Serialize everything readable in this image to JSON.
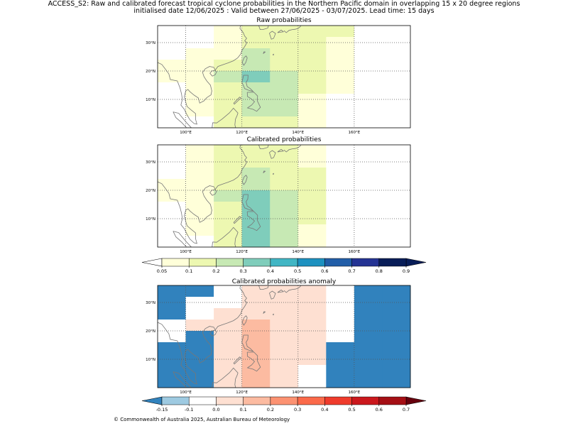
{
  "header": {
    "title_line1": "ACCESS_S2: Raw and calibrated forecast tropical cyclone probabilities in the Northern Pacific domain in overlapping 15 x 20 degree regions",
    "title_line2": "initialised date 12/06/2025 :  Valid between 27/06/2025 - 03/07/2025. Lead time: 15 days"
  },
  "map": {
    "lon_range": [
      90,
      180
    ],
    "lat_range": [
      0,
      36
    ],
    "x_ticks": [
      {
        "lon": 100,
        "label": "100°E"
      },
      {
        "lon": 120,
        "label": "120°E"
      },
      {
        "lon": 140,
        "label": "140°E"
      },
      {
        "lon": 160,
        "label": "160°E"
      }
    ],
    "y_ticks": [
      {
        "lat": 10,
        "label": "10°N"
      },
      {
        "lat": 20,
        "label": "20°N"
      },
      {
        "lat": 30,
        "label": "30°N"
      }
    ],
    "gridlines": "dotted",
    "coastline_color": "#777777"
  },
  "chart_data": [
    {
      "type": "heatmap",
      "title": "Raw probabilities",
      "lon_edges": [
        90,
        100,
        110,
        120,
        130,
        140,
        150,
        160,
        170,
        180
      ],
      "lat_edges": [
        36,
        32,
        28,
        24,
        20,
        16,
        12,
        8,
        4,
        0
      ],
      "cells": [
        [
          0,
          0,
          0.08,
          0.12,
          0.15,
          0.15,
          0.15,
          0,
          0
        ],
        [
          0,
          0,
          0.08,
          0.12,
          0.15,
          0.15,
          0.08,
          0,
          0
        ],
        [
          0,
          0.08,
          0.08,
          0.2,
          0.15,
          0.15,
          0.08,
          0,
          0
        ],
        [
          0.08,
          0.08,
          0.12,
          0.2,
          0.15,
          0.15,
          0.08,
          0,
          0
        ],
        [
          0.08,
          0.08,
          0.2,
          0.3,
          0.2,
          0.15,
          0.08,
          0,
          0
        ],
        [
          0,
          0.08,
          0.15,
          0.2,
          0.2,
          0.15,
          0.08,
          0,
          0
        ],
        [
          0,
          0.08,
          0.15,
          0.2,
          0.2,
          0.08,
          0,
          0,
          0
        ],
        [
          0,
          0.08,
          0.15,
          0.2,
          0.2,
          0.08,
          0,
          0,
          0
        ],
        [
          0,
          0,
          0.12,
          0.15,
          0.15,
          0.08,
          0,
          0,
          0
        ]
      ]
    },
    {
      "type": "heatmap",
      "title": "Calibrated probabilities",
      "lon_edges": [
        90,
        100,
        110,
        120,
        130,
        140,
        150,
        160,
        170,
        180
      ],
      "lat_edges": [
        36,
        32,
        28,
        24,
        20,
        16,
        12,
        8,
        4,
        0
      ],
      "cells": [
        [
          0,
          0.08,
          0.12,
          0.15,
          0.15,
          0.08,
          0,
          0,
          0
        ],
        [
          0,
          0.08,
          0.12,
          0.15,
          0.15,
          0.08,
          0,
          0,
          0
        ],
        [
          0,
          0.08,
          0.12,
          0.2,
          0.15,
          0.15,
          0,
          0,
          0
        ],
        [
          0.08,
          0.08,
          0.15,
          0.2,
          0.15,
          0.15,
          0,
          0,
          0
        ],
        [
          0.08,
          0.08,
          0.2,
          0.3,
          0.2,
          0.15,
          0,
          0,
          0
        ],
        [
          0,
          0.08,
          0.15,
          0.3,
          0.2,
          0.15,
          0,
          0,
          0
        ],
        [
          0,
          0.08,
          0.15,
          0.3,
          0.2,
          0.15,
          0,
          0,
          0
        ],
        [
          0,
          0.08,
          0.15,
          0.3,
          0.2,
          0.08,
          0,
          0,
          0
        ],
        [
          0,
          0,
          0.12,
          0.3,
          0.2,
          0.08,
          0,
          0,
          0
        ]
      ]
    },
    {
      "type": "heatmap",
      "title": "Calibrated probabilities anomaly",
      "lon_edges": [
        90,
        100,
        110,
        120,
        130,
        140,
        150,
        160,
        170,
        180
      ],
      "lat_edges": [
        36,
        32,
        28,
        24,
        20,
        16,
        12,
        8,
        4,
        0
      ],
      "cells": [
        [
          -0.2,
          -0.2,
          -0.1,
          0,
          0,
          0,
          -0.1,
          -0.2,
          -0.2
        ],
        [
          -0.2,
          -0.1,
          -0.1,
          0.05,
          0,
          0,
          -0.1,
          -0.2,
          -0.2
        ],
        [
          -0.2,
          -0.1,
          0,
          0.05,
          0,
          0,
          -0.1,
          -0.2,
          -0.2
        ],
        [
          -0.1,
          0,
          0.05,
          0.15,
          0.05,
          0,
          -0.1,
          -0.2,
          -0.2
        ],
        [
          -0.1,
          -0.2,
          0.05,
          0.15,
          0.05,
          0,
          -0.1,
          -0.2,
          -0.2
        ],
        [
          -0.2,
          -0.2,
          0,
          0.15,
          0.05,
          0,
          -0.2,
          -0.2,
          -0.2
        ],
        [
          -0.2,
          -0.2,
          0,
          0.15,
          0.05,
          0,
          -0.2,
          -0.2,
          -0.2
        ],
        [
          -0.2,
          -0.2,
          0,
          0.15,
          0.05,
          -0.1,
          -0.2,
          -0.2,
          -0.2
        ],
        [
          -0.2,
          -0.2,
          0,
          0.15,
          0.05,
          -0.1,
          -0.2,
          -0.2,
          -0.2
        ]
      ]
    }
  ],
  "colorbars": {
    "probability": {
      "boundaries": [
        0.05,
        0.1,
        0.2,
        0.3,
        0.4,
        0.5,
        0.6,
        0.7,
        0.8,
        0.9
      ],
      "labels": [
        "0.05",
        "0.1",
        "0.2",
        "0.3",
        "0.4",
        "0.5",
        "0.6",
        "0.7",
        "0.8",
        "0.9"
      ],
      "colors": [
        "#ffffd9",
        "#edf8b1",
        "#c7e9b4",
        "#7fcdbb",
        "#41b6c4",
        "#1d91c0",
        "#225ea8",
        "#253494",
        "#081d58"
      ],
      "under_color": "#ffffff",
      "over_color": "#081d58"
    },
    "anomaly": {
      "boundaries": [
        -0.15,
        -0.1,
        0.0,
        0.1,
        0.2,
        0.3,
        0.4,
        0.5,
        0.6,
        0.7
      ],
      "labels": [
        "-0.15",
        "-0.1",
        "0.0",
        "0.1",
        "0.2",
        "0.3",
        "0.4",
        "0.5",
        "0.6",
        "0.7"
      ],
      "colors": [
        "#9ecae1",
        "#ffffff",
        "#fee0d2",
        "#fcbba1",
        "#fc9272",
        "#fb6a4a",
        "#ef3b2c",
        "#cb181d",
        "#a50f15"
      ],
      "under_color": "#3182bd",
      "over_color": "#67000d"
    }
  },
  "footer": {
    "copyright": "© Commonwealth of Australia 2025, Australian Bureau of Meteorology"
  }
}
